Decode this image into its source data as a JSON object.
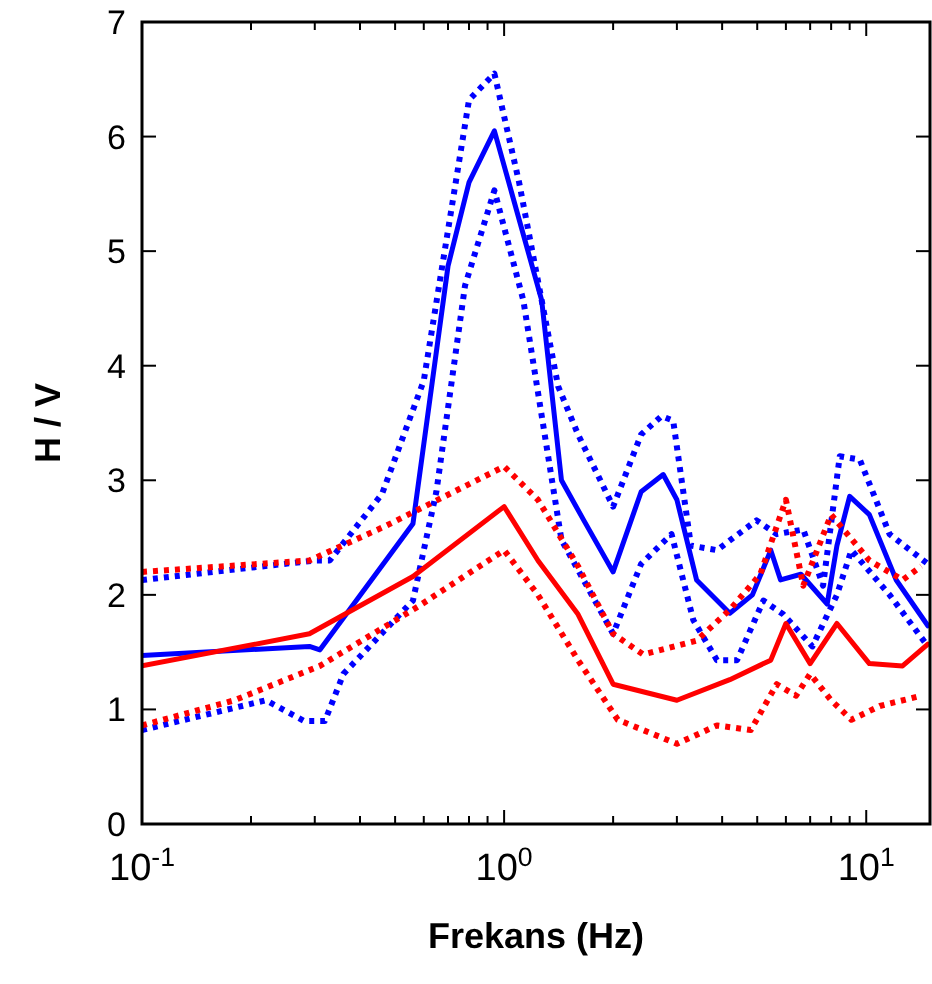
{
  "chart_data": {
    "type": "line",
    "xlabel": "Frekans (Hz)",
    "ylabel": "H / V",
    "log": "x",
    "grid": false,
    "xlim": [
      0.1,
      15
    ],
    "ylim": [
      0,
      7
    ],
    "xticks": [
      {
        "value": 0.1,
        "label": "10$^{-1}$"
      },
      {
        "value": 0.2,
        "label": null
      },
      {
        "value": 0.3,
        "label": null
      },
      {
        "value": 0.4,
        "label": null
      },
      {
        "value": 0.5,
        "label": null
      },
      {
        "value": 0.6,
        "label": null
      },
      {
        "value": 0.7,
        "label": null
      },
      {
        "value": 0.8,
        "label": null
      },
      {
        "value": 0.9,
        "label": null
      },
      {
        "value": 1,
        "label": "10$^{0}$"
      },
      {
        "value": 2,
        "label": null
      },
      {
        "value": 3,
        "label": null
      },
      {
        "value": 4,
        "label": null
      },
      {
        "value": 5,
        "label": null
      },
      {
        "value": 6,
        "label": null
      },
      {
        "value": 7,
        "label": null
      },
      {
        "value": 8,
        "label": null
      },
      {
        "value": 9,
        "label": null
      },
      {
        "value": 10,
        "label": "10$^{1}$"
      }
    ],
    "yticks": [
      0,
      1,
      2,
      3,
      4,
      5,
      6,
      7
    ],
    "series": [
      {
        "color": "#0000ff",
        "line_style": "solid",
        "x": [
          0.1,
          0.29,
          0.31,
          0.56,
          0.7,
          0.8,
          0.94,
          1.27,
          1.44,
          1.66,
          2.0,
          2.39,
          2.75,
          3.0,
          3.4,
          4.2,
          4.85,
          5.45,
          5.8,
          6.6,
          7.8,
          8.3,
          9.0,
          10.2,
          12.1,
          14.8
        ],
        "values": [
          1.47,
          1.55,
          1.52,
          2.62,
          4.87,
          5.6,
          6.05,
          4.57,
          3.0,
          2.65,
          2.2,
          2.9,
          3.05,
          2.83,
          2.13,
          1.84,
          2.0,
          2.39,
          2.13,
          2.18,
          1.92,
          2.43,
          2.86,
          2.7,
          2.13,
          1.73
        ]
      },
      {
        "color": "#0000ff",
        "line_style": "dotted",
        "x": [
          0.1,
          0.3,
          0.33,
          0.46,
          0.6,
          0.8,
          0.94,
          1.1,
          1.41,
          1.6,
          2.0,
          2.39,
          2.72,
          2.93,
          3.28,
          3.87,
          4.98,
          5.66,
          6.7,
          7.6,
          8.45,
          9.6,
          11.6,
          14.8
        ],
        "values": [
          2.13,
          2.3,
          2.3,
          2.88,
          3.87,
          6.32,
          6.55,
          5.6,
          3.82,
          3.4,
          2.77,
          3.4,
          3.56,
          3.52,
          2.43,
          2.39,
          2.65,
          2.53,
          2.57,
          2.08,
          3.21,
          3.18,
          2.53,
          2.27
        ]
      },
      {
        "color": "#0000ff",
        "line_style": "dotted",
        "x": [
          0.1,
          0.22,
          0.28,
          0.32,
          0.36,
          0.56,
          0.65,
          0.78,
          0.94,
          1.13,
          1.44,
          2.0,
          2.39,
          2.9,
          3.33,
          3.87,
          4.4,
          5.2,
          5.9,
          7.1,
          8.3,
          9.1,
          11.6,
          14.8
        ],
        "values": [
          0.82,
          1.08,
          0.9,
          0.9,
          1.31,
          1.95,
          2.9,
          4.7,
          5.53,
          4.57,
          2.48,
          1.66,
          2.27,
          2.53,
          1.78,
          1.43,
          1.43,
          1.95,
          1.83,
          1.55,
          2.0,
          2.39,
          2.0,
          1.55
        ]
      },
      {
        "color": "#ff0000",
        "line_style": "solid",
        "x": [
          0.1,
          0.29,
          0.56,
          1.0,
          1.24,
          1.6,
          2.0,
          3.0,
          4.2,
          5.45,
          6.0,
          7.0,
          8.3,
          10.2,
          12.6,
          14.8
        ],
        "values": [
          1.38,
          1.66,
          2.16,
          2.77,
          2.3,
          1.83,
          1.22,
          1.08,
          1.26,
          1.43,
          1.75,
          1.4,
          1.75,
          1.4,
          1.38,
          1.57
        ]
      },
      {
        "color": "#ff0000",
        "line_style": "dotted",
        "x": [
          0.1,
          0.29,
          0.47,
          1.0,
          1.24,
          1.6,
          2.0,
          2.42,
          3.4,
          4.2,
          5.1,
          6.0,
          6.7,
          8.0,
          10.2,
          12.6,
          14.2
        ],
        "values": [
          2.2,
          2.3,
          2.6,
          3.12,
          2.83,
          2.25,
          1.66,
          1.48,
          1.6,
          1.87,
          2.18,
          2.83,
          2.08,
          2.7,
          2.3,
          2.13,
          2.25
        ]
      },
      {
        "color": "#ff0000",
        "line_style": "dotted",
        "x": [
          0.1,
          0.18,
          0.31,
          0.58,
          1.0,
          1.24,
          1.6,
          2.06,
          3.0,
          3.87,
          4.8,
          5.66,
          6.4,
          7.0,
          8.0,
          9.1,
          10.9,
          14.2
        ],
        "values": [
          0.86,
          1.08,
          1.38,
          1.9,
          2.39,
          2.0,
          1.43,
          0.91,
          0.7,
          0.86,
          0.82,
          1.22,
          1.12,
          1.31,
          1.08,
          0.91,
          1.03,
          1.12
        ]
      }
    ]
  }
}
